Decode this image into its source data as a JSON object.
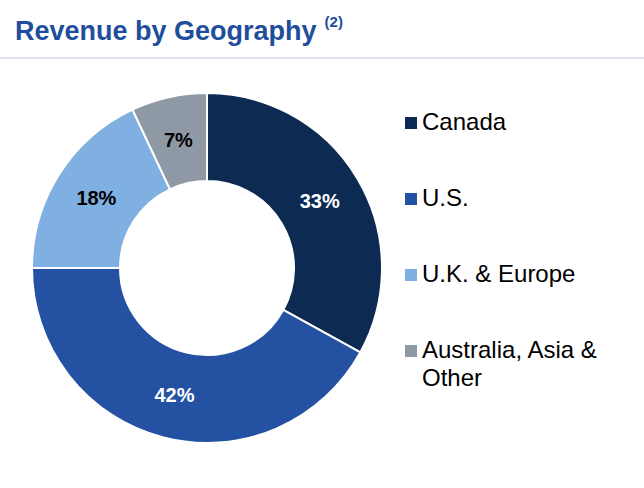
{
  "chart_data": {
    "type": "pie",
    "title": "Revenue by Geography",
    "annotations": [
      "(2)"
    ],
    "categories": [
      "Canada",
      "U.S.",
      "U.K. & Europe",
      "Australia, Asia & Other"
    ],
    "values": [
      33,
      42,
      18,
      7
    ],
    "value_labels": [
      "33%",
      "42%",
      "18%",
      "7%"
    ],
    "colors": [
      "#0d2a52",
      "#2451a2",
      "#80b0e2",
      "#8e99a5"
    ],
    "data_labels": true,
    "legend": "right"
  }
}
